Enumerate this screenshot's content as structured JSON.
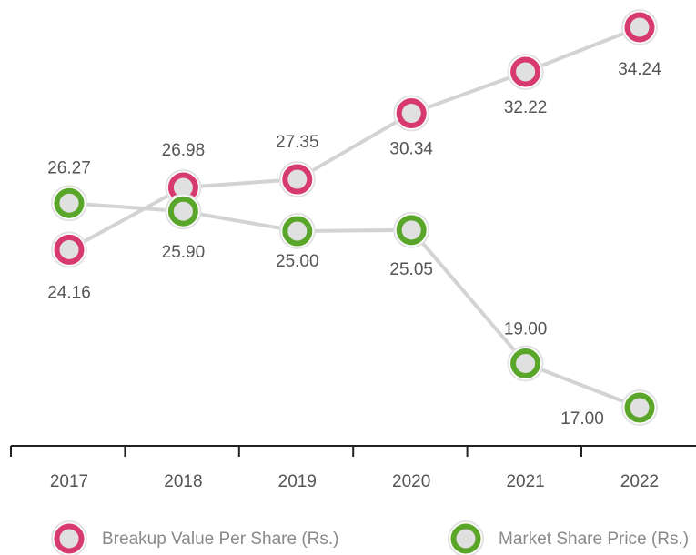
{
  "chart_data": {
    "type": "line",
    "categories": [
      "2017",
      "2018",
      "2019",
      "2020",
      "2021",
      "2022"
    ],
    "series": [
      {
        "name": "Breakup Value Per Share (Rs.)",
        "color": "#d63a6e",
        "values": [
          24.16,
          26.98,
          27.35,
          30.34,
          32.22,
          34.24
        ],
        "value_labels": [
          "24.16",
          "26.98",
          "27.35",
          "30.34",
          "32.22",
          "34.24"
        ]
      },
      {
        "name": "Market Share Price (Rs.)",
        "color": "#5aa62b",
        "values": [
          26.27,
          25.9,
          25.0,
          25.05,
          19.0,
          17.0
        ],
        "value_labels": [
          "26.27",
          "25.90",
          "25.00",
          "25.05",
          "19.00",
          "17.00"
        ]
      }
    ],
    "legend": "bottom"
  }
}
